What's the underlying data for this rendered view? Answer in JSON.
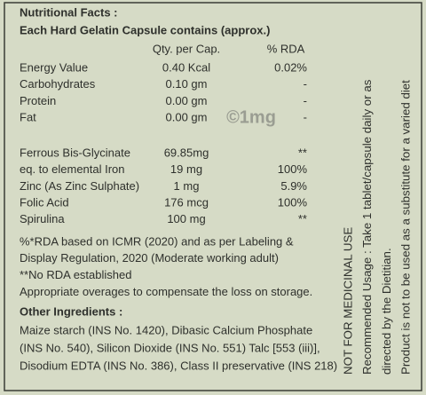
{
  "header": {
    "title": "Nutritional Facts :",
    "subtitle": "Each Hard Gelatin Capsule contains (approx.)"
  },
  "table": {
    "columns": [
      "Qty. per Cap.",
      "% RDA"
    ],
    "groups": [
      [
        [
          "Energy Value",
          "0.40 Kcal",
          "0.02%"
        ],
        [
          "Carbohydrates",
          "0.10 gm",
          "-"
        ],
        [
          "Protein",
          "0.00 gm",
          "-"
        ],
        [
          "Fat",
          "0.00 gm",
          "-"
        ]
      ],
      [
        [
          "Ferrous Bis-Glycinate",
          "69.85mg",
          "**"
        ],
        [
          "eq. to elemental Iron",
          "19 mg",
          "100%"
        ],
        [
          "Zinc (As Zinc Sulphate)",
          "1 mg",
          "5.9%"
        ],
        [
          "Folic Acid",
          "176 mcg",
          "100%"
        ],
        [
          "Spirulina",
          "100 mg",
          "**"
        ]
      ]
    ]
  },
  "watermark": "©1mg",
  "notes": [
    "%*RDA based on ICMR (2020) and as per Labeling &",
    "Display Regulation, 2020 (Moderate working adult)",
    "**No RDA established",
    "Appropriate overages to compensate the loss on storage."
  ],
  "other_ingredients": {
    "heading": "Other Ingredients :",
    "lines": [
      "Maize starch (INS No. 1420), Dibasic Calcium Phosphate",
      "(INS No. 540), Silicon Dioxide (INS No. 551) Talc [553 (iii)],",
      "Disodium EDTA (INS No. 386), Class II preservative (INS 218)"
    ]
  },
  "side_text": [
    "NOT FOR MEDICINAL USE",
    "Recommended Usage : Take 1 tablet/capsule daily or as",
    "directed by the Dietitian.",
    "Product is not to be used as a substitute for a varied diet"
  ]
}
